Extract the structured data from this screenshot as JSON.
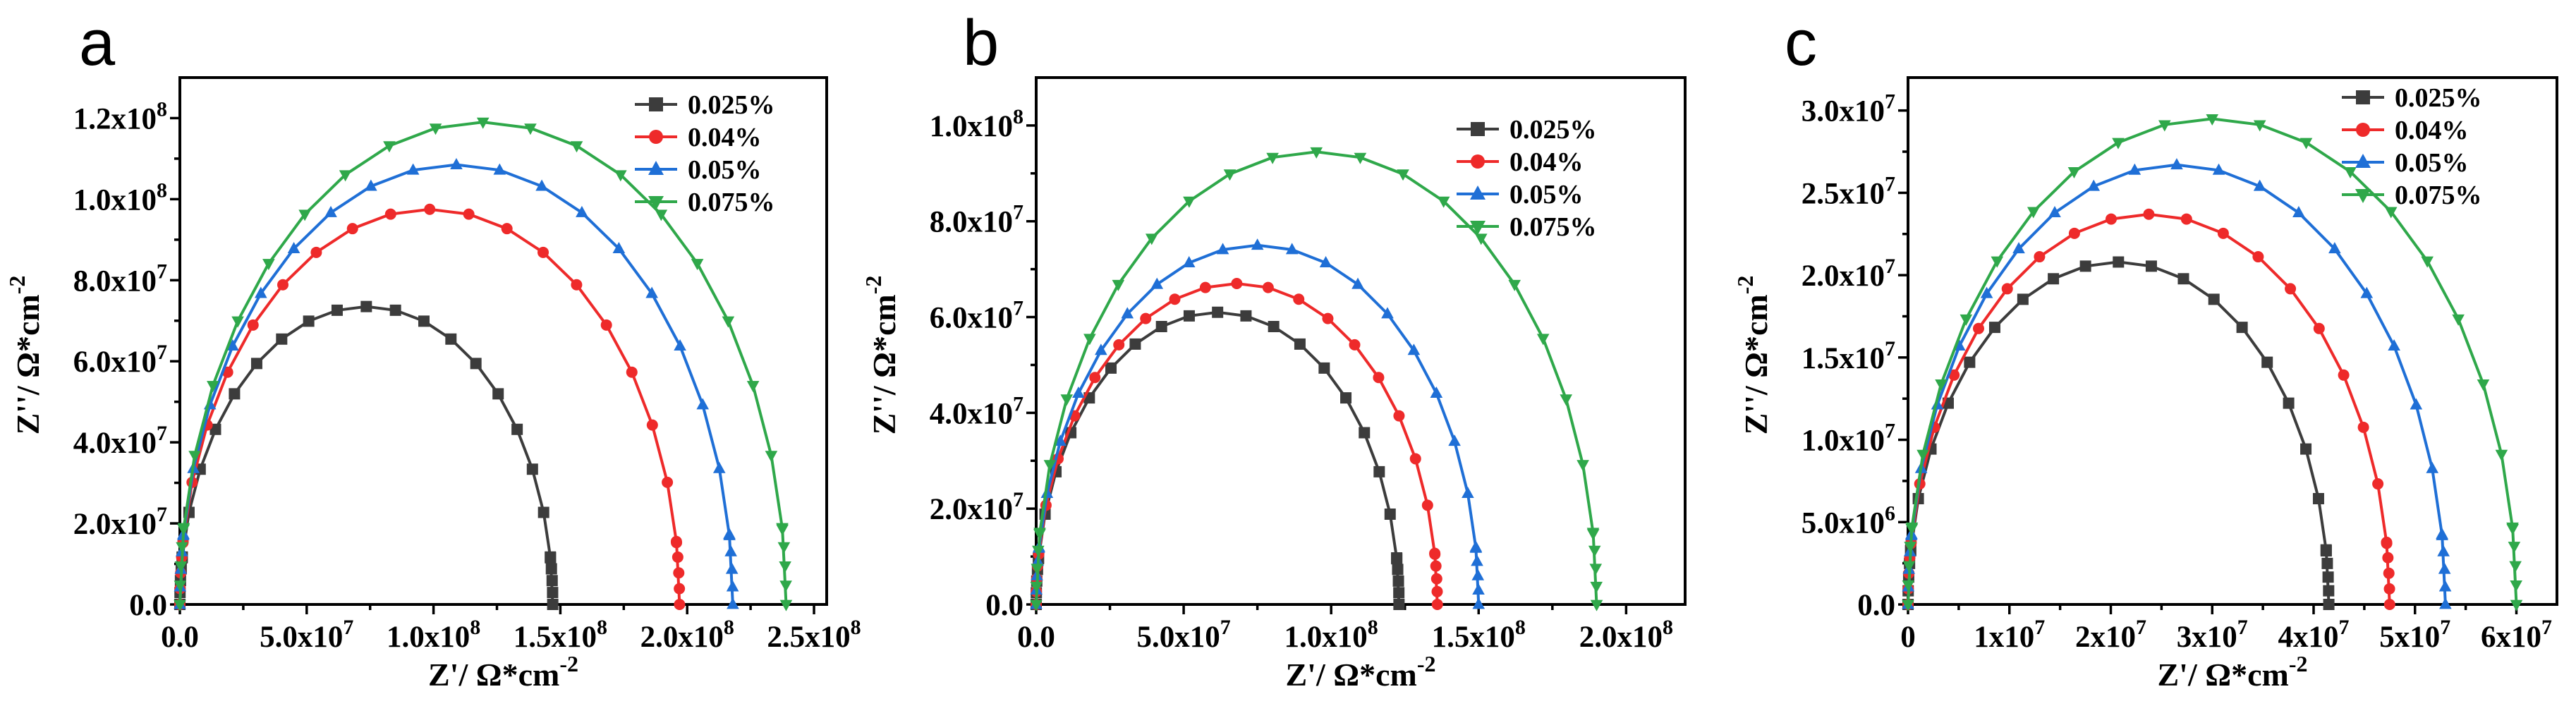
{
  "chart_data": [
    {
      "panel": "a",
      "type": "scatter",
      "xlabel": "Z'/ Ω*cm",
      "ylabel": "Z''/ Ω*cm",
      "unit_exponent": "-2",
      "xlim": [
        0,
        255000000.0
      ],
      "ylim": [
        0,
        130000000.0
      ],
      "xticks": [
        0,
        50000000.0,
        100000000.0,
        150000000.0,
        200000000.0,
        250000000.0
      ],
      "xtick_labels": [
        "0.0",
        "5.0x10",
        "1.0x10",
        "1.5x10",
        "2.0x10",
        "2.5x10"
      ],
      "xtick_exps": [
        "",
        "7",
        "8",
        "8",
        "8",
        "8"
      ],
      "yticks": [
        0,
        20000000.0,
        40000000.0,
        60000000.0,
        80000000.0,
        100000000.0,
        120000000.0
      ],
      "ytick_labels": [
        "0.0",
        "2.0x10",
        "4.0x10",
        "6.0x10",
        "8.0x10",
        "1.0x10",
        "1.2x10"
      ],
      "ytick_exps": [
        "",
        "7",
        "7",
        "7",
        "7",
        "8",
        "8"
      ],
      "legend_position": "top-right",
      "series": [
        {
          "name": "0.025%",
          "marker": "square",
          "color": "#3c3c3c",
          "diameter": 147000000.0,
          "peak": 73500000.0
        },
        {
          "name": "0.04%",
          "marker": "circle",
          "color": "#ee2a2a",
          "diameter": 197000000.0,
          "peak": 97500000.0
        },
        {
          "name": "0.05%",
          "marker": "triangle-up",
          "color": "#1f6fd6",
          "diameter": 218000000.0,
          "peak": 108500000.0
        },
        {
          "name": "0.075%",
          "marker": "triangle-down",
          "color": "#2fa84a",
          "diameter": 239000000.0,
          "peak": 119000000.0
        }
      ]
    },
    {
      "panel": "b",
      "type": "scatter",
      "xlabel": "Z'/ Ω*cm",
      "ylabel": "Z''/ Ω*cm",
      "unit_exponent": "-2",
      "xlim": [
        0,
        220000000.0
      ],
      "ylim": [
        0,
        110000000.0
      ],
      "xticks": [
        0,
        50000000.0,
        100000000.0,
        150000000.0,
        200000000.0
      ],
      "xtick_labels": [
        "0.0",
        "5.0x10",
        "1.0x10",
        "1.5x10",
        "2.0x10"
      ],
      "xtick_exps": [
        "",
        "7",
        "8",
        "8",
        "8"
      ],
      "yticks": [
        0,
        20000000.0,
        40000000.0,
        60000000.0,
        80000000.0,
        100000000.0
      ],
      "ytick_labels": [
        "0.0",
        "2.0x10",
        "4.0x10",
        "6.0x10",
        "8.0x10",
        "1.0x10"
      ],
      "ytick_exps": [
        "",
        "7",
        "7",
        "7",
        "7",
        "8"
      ],
      "legend_position": "top-right",
      "series": [
        {
          "name": "0.025%",
          "marker": "square",
          "color": "#3c3c3c",
          "diameter": 123000000.0,
          "peak": 61000000.0
        },
        {
          "name": "0.04%",
          "marker": "circle",
          "color": "#ee2a2a",
          "diameter": 136000000.0,
          "peak": 67000000.0
        },
        {
          "name": "0.05%",
          "marker": "triangle-up",
          "color": "#1f6fd6",
          "diameter": 150000000.0,
          "peak": 75000000.0
        },
        {
          "name": "0.075%",
          "marker": "triangle-down",
          "color": "#2fa84a",
          "diameter": 190000000.0,
          "peak": 94500000.0
        }
      ]
    },
    {
      "panel": "c",
      "type": "scatter",
      "xlabel": "Z'/ Ω*cm",
      "ylabel": "Z''/ Ω*cm",
      "unit_exponent": "-2",
      "xlim": [
        0,
        64000000.0
      ],
      "ylim": [
        0,
        32000000.0
      ],
      "xticks": [
        0,
        10000000.0,
        20000000.0,
        30000000.0,
        40000000.0,
        50000000.0,
        60000000.0
      ],
      "xtick_labels": [
        "0",
        "1x10",
        "2x10",
        "3x10",
        "4x10",
        "5x10",
        "6x10"
      ],
      "xtick_exps": [
        "",
        "7",
        "7",
        "7",
        "7",
        "7",
        "7"
      ],
      "yticks": [
        0,
        5000000.0,
        10000000.0,
        15000000.0,
        20000000.0,
        25000000.0,
        30000000.0
      ],
      "ytick_labels": [
        "0.0",
        "5.0x10",
        "1.0x10",
        "1.5x10",
        "2.0x10",
        "2.5x10",
        "3.0x10"
      ],
      "ytick_exps": [
        "",
        "6",
        "7",
        "7",
        "7",
        "7",
        "7"
      ],
      "legend_position": "top-right",
      "series": [
        {
          "name": "0.025%",
          "marker": "square",
          "color": "#3c3c3c",
          "diameter": 41500000.0,
          "peak": 20800000.0
        },
        {
          "name": "0.04%",
          "marker": "circle",
          "color": "#ee2a2a",
          "diameter": 47500000.0,
          "peak": 23700000.0
        },
        {
          "name": "0.05%",
          "marker": "triangle-up",
          "color": "#1f6fd6",
          "diameter": 53000000.0,
          "peak": 26700000.0
        },
        {
          "name": "0.075%",
          "marker": "triangle-down",
          "color": "#2fa84a",
          "diameter": 60000000.0,
          "peak": 29500000.0
        }
      ]
    }
  ]
}
